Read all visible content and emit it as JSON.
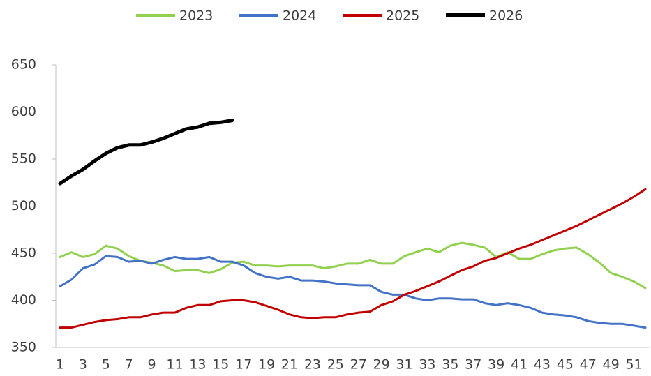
{
  "chart_data": {
    "type": "line",
    "categories": [
      1,
      null,
      3,
      null,
      5,
      null,
      7,
      null,
      9,
      null,
      11,
      null,
      13,
      null,
      15,
      null,
      17,
      null,
      19,
      null,
      21,
      null,
      23,
      null,
      25,
      null,
      27,
      null,
      29,
      null,
      31,
      null,
      33,
      null,
      35,
      null,
      37,
      null,
      39,
      null,
      41,
      null,
      43,
      null,
      45,
      null,
      47,
      null,
      49,
      null,
      51,
      null
    ],
    "series": [
      {
        "name": "2023",
        "color": "#92d050",
        "width": 3,
        "values": [
          446,
          451,
          446,
          449,
          458,
          455,
          447,
          442,
          440,
          437,
          431,
          432,
          432,
          429,
          433,
          440,
          441,
          437,
          437,
          436,
          437,
          437,
          437,
          434,
          436,
          439,
          439,
          443,
          439,
          439,
          447,
          451,
          455,
          451,
          458,
          461,
          459,
          456,
          446,
          451,
          444,
          444,
          449,
          453,
          455,
          456,
          449,
          440,
          429,
          425,
          420,
          413
        ]
      },
      {
        "name": "2024",
        "color": "#4472c4",
        "width": 3,
        "values": [
          415,
          422,
          434,
          438,
          447,
          446,
          441,
          442,
          439,
          443,
          446,
          444,
          444,
          446,
          441,
          441,
          437,
          429,
          425,
          423,
          425,
          421,
          421,
          420,
          418,
          417,
          416,
          416,
          409,
          406,
          406,
          402,
          400,
          402,
          402,
          401,
          401,
          397,
          395,
          397,
          395,
          392,
          387,
          385,
          384,
          382,
          378,
          376,
          375,
          375,
          373,
          371
        ]
      },
      {
        "name": "2025",
        "color": "#c00000",
        "width": 3,
        "values": [
          371,
          371,
          374,
          377,
          379,
          380,
          382,
          382,
          385,
          387,
          387,
          392,
          395,
          395,
          399,
          400,
          400,
          398,
          394,
          390,
          385,
          382,
          381,
          382,
          382,
          385,
          387,
          388,
          395,
          399,
          406,
          410,
          415,
          420,
          426,
          432,
          436,
          442,
          445,
          450,
          455,
          459,
          464,
          469,
          474,
          479,
          485,
          491,
          497,
          503,
          510,
          518
        ]
      },
      {
        "name": "2026",
        "color": "#000000",
        "width": 5,
        "values": [
          524,
          532,
          539,
          548,
          556,
          562,
          565,
          565,
          568,
          572,
          577,
          582,
          584,
          588,
          589,
          591,
          null,
          null,
          null,
          null,
          null,
          null,
          null,
          null,
          null,
          null,
          null,
          null,
          null,
          null,
          null,
          null,
          null,
          null,
          null,
          null,
          null,
          null,
          null,
          null,
          null,
          null,
          null,
          null,
          null,
          null,
          null,
          null,
          null,
          null,
          null,
          null
        ]
      }
    ],
    "ylim": [
      350,
      650
    ],
    "yticks": [
      350,
      400,
      450,
      500,
      550,
      600,
      650
    ],
    "legend": "top"
  }
}
